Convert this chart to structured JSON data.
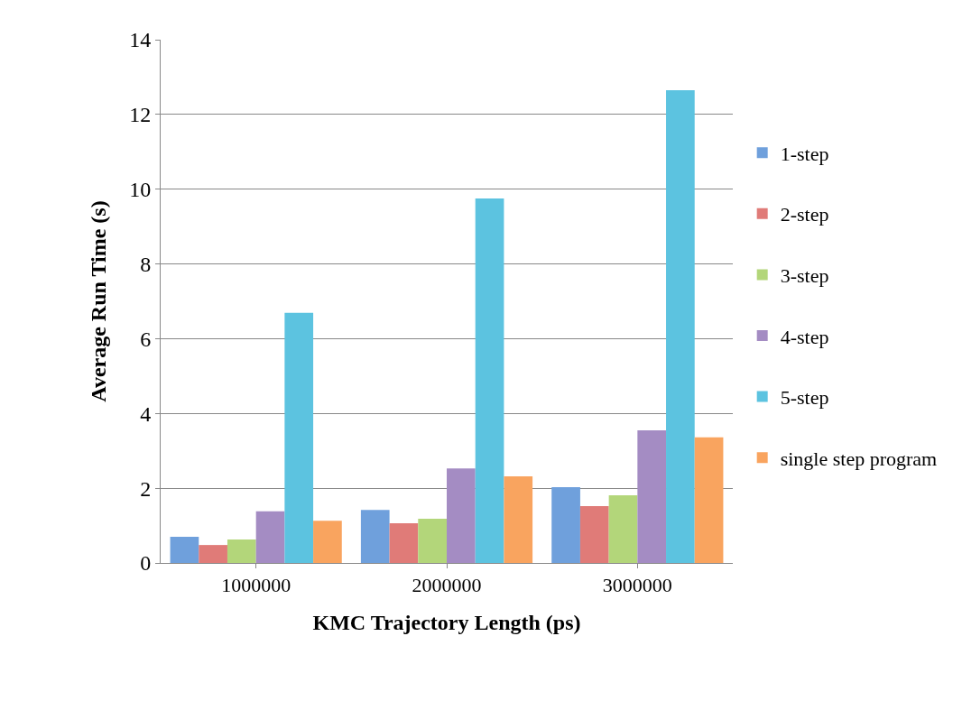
{
  "chart_data": {
    "type": "bar",
    "xlabel": "KMC Trajectory Length (ps)",
    "ylabel": "Average Run Time (s)",
    "categories": [
      "1000000",
      "2000000",
      "3000000"
    ],
    "series": [
      {
        "name": "1-step",
        "color": "#6fa0dc",
        "values": [
          0.7,
          1.42,
          2.03
        ]
      },
      {
        "name": "2-step",
        "color": "#e07b78",
        "values": [
          0.48,
          1.06,
          1.52
        ]
      },
      {
        "name": "3-step",
        "color": "#b3d67a",
        "values": [
          0.63,
          1.18,
          1.81
        ]
      },
      {
        "name": "4-step",
        "color": "#a48cc3",
        "values": [
          1.38,
          2.53,
          3.55
        ]
      },
      {
        "name": "5-step",
        "color": "#5cc3e0",
        "values": [
          6.69,
          9.75,
          12.65
        ]
      },
      {
        "name": "single step program",
        "color": "#f9a45f",
        "values": [
          1.13,
          2.32,
          3.36
        ]
      }
    ],
    "ylim": [
      0,
      14
    ],
    "yticks": [
      0,
      2,
      4,
      6,
      8,
      10,
      12,
      14
    ],
    "grid": "y",
    "legend": "right"
  }
}
